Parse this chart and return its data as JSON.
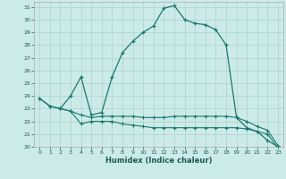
{
  "xlabel": "Humidex (Indice chaleur)",
  "bg_color": "#cceae8",
  "grid_color": "#aad4d0",
  "line_color": "#1a7870",
  "xlim": [
    -0.5,
    23.5
  ],
  "ylim": [
    20,
    31.4
  ],
  "xticks": [
    0,
    1,
    2,
    3,
    4,
    5,
    6,
    7,
    8,
    9,
    10,
    11,
    12,
    13,
    14,
    15,
    16,
    17,
    18,
    19,
    20,
    21,
    22,
    23
  ],
  "yticks": [
    20,
    21,
    22,
    23,
    24,
    25,
    26,
    27,
    28,
    29,
    30,
    31
  ],
  "line1_x": [
    0,
    1,
    2,
    3,
    4,
    5,
    6,
    7,
    8,
    9,
    10,
    11,
    12,
    13,
    14,
    15,
    16,
    17,
    18,
    19,
    20,
    21,
    22,
    23
  ],
  "line1_y": [
    23.8,
    23.2,
    23.0,
    24.0,
    25.5,
    22.5,
    22.7,
    25.5,
    27.4,
    28.3,
    29.0,
    29.5,
    30.9,
    31.1,
    30.0,
    29.7,
    29.6,
    29.2,
    28.0,
    22.3,
    21.5,
    21.2,
    20.5,
    20.0
  ],
  "line2_x": [
    0,
    1,
    2,
    3,
    4,
    5,
    6,
    7,
    8,
    9,
    10,
    11,
    12,
    13,
    14,
    15,
    16,
    17,
    18,
    19,
    20,
    21,
    22,
    23
  ],
  "line2_y": [
    23.8,
    23.2,
    23.0,
    22.8,
    22.5,
    22.3,
    22.4,
    22.4,
    22.4,
    22.4,
    22.3,
    22.3,
    22.3,
    22.4,
    22.4,
    22.4,
    22.4,
    22.4,
    22.4,
    22.3,
    22.0,
    21.6,
    21.3,
    20.1
  ],
  "line3_x": [
    2,
    3,
    4,
    5,
    6,
    7,
    8,
    9,
    10,
    11,
    12,
    13,
    14,
    15,
    16,
    17,
    18,
    19,
    20,
    21,
    22,
    23
  ],
  "line3_y": [
    23.0,
    22.8,
    21.8,
    22.0,
    22.0,
    22.0,
    21.8,
    21.7,
    21.6,
    21.5,
    21.5,
    21.5,
    21.5,
    21.5,
    21.5,
    21.5,
    21.5,
    21.5,
    21.4,
    21.2,
    21.0,
    19.9
  ]
}
